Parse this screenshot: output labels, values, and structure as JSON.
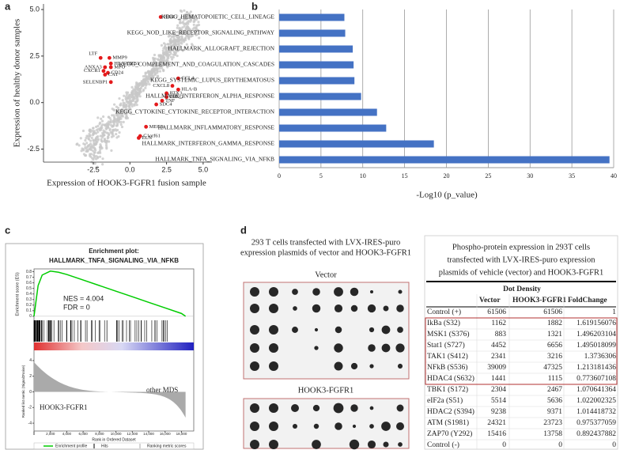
{
  "panel_labels": [
    "a",
    "b",
    "c",
    "d"
  ],
  "chart_data": [
    {
      "type": "scatter",
      "xlabel": "Expression of HOOK3-FGFR1 fusion sample",
      "ylabel": "Expression of healthy donor samples",
      "color": "#e41a1c",
      "background_color": "#c8c8c8",
      "labels": [
        "HBB",
        "LTF",
        "MMP9",
        "HLA-DRB1",
        "MPO",
        "ANXA3",
        "CXCR1",
        "CD24",
        "CA1",
        "SELENBP1",
        "CCL4",
        "CXCL8",
        "HLA-B",
        "PTX3",
        "EREG",
        "TNF",
        "SDC4",
        "MEG3",
        "C1orf61",
        "ELN"
      ],
      "x": [
        2.1,
        -2.0,
        -1.4,
        -1.3,
        -1.3,
        -1.7,
        -1.8,
        -1.5,
        -1.7,
        -1.3,
        3.3,
        2.9,
        3.3,
        2.5,
        2.5,
        2.2,
        1.8,
        1.1,
        0.7,
        0.6
      ],
      "y": [
        4.6,
        2.4,
        2.4,
        2.1,
        1.9,
        1.9,
        1.7,
        1.6,
        1.5,
        1.1,
        1.3,
        0.9,
        0.7,
        0.5,
        0.3,
        0.1,
        -0.1,
        -1.3,
        -1.8,
        -1.9
      ],
      "xlim": [
        -5.9,
        5.6
      ],
      "ylim": [
        -3.2,
        5.3
      ],
      "xticks": [
        -2.5,
        {
          "value": 0,
          "label": "0.0"
        },
        2.5,
        {
          "value": 5,
          "label": "5.0"
        }
      ],
      "yticks": [
        -2.5,
        {
          "value": 0,
          "label": "0.0"
        },
        2.5,
        {
          "value": 5,
          "label": "5.0"
        }
      ]
    },
    {
      "type": "hbar",
      "xlabel": "-Log10 (p_value)",
      "color": "#4472c4",
      "grid": true,
      "categories": [
        "KEGG_HEMATOPOIETIC_CELL_LINEAGE",
        "KEGG_NOD_LIKE_RECEPTOR_SIGNALING_PATHWAY",
        "HALLMARK_ALLOGRAFT_REJECTION",
        "KEGG_COMPLEMENT_AND_COAGULATION_CASCADES",
        "KEGG_SYSTEMIC_LUPUS_ERYTHEMATOSUS",
        "HALLMARK_INTERFERON_ALPHA_RESPONSE",
        "KEGG_CYTOKINE_CYTOKINE_RECEPTOR_INTERACTION",
        "HALLMARK_INFLAMMATORY_RESPONSE",
        "HALLMARK_INTERFERON_GAMMA_RESPONSE",
        "HALLMARK_TNFA_SIGNALING_VIA_NFKB"
      ],
      "values": [
        7.8,
        7.9,
        8.8,
        8.9,
        9.0,
        9.8,
        11.7,
        12.8,
        18.5,
        39.5
      ],
      "xlim": [
        0,
        40
      ],
      "xticks": [
        0,
        5,
        10,
        15,
        20,
        25,
        30,
        35,
        40
      ]
    },
    {
      "type": "gsea",
      "title": "Enrichment plot:",
      "subtitle": "HALLMARK_TNFA_SIGNALING_VIA_NFKB",
      "ylabel": "Enrichment score (ES)",
      "ylabel2": "Ranked list metric (Signal2Noise)",
      "xlabel": "Rank in Ordered Dataset",
      "annotations": [
        "NES = 4.004",
        "FDR = 0"
      ],
      "group_labels": [
        "HOOK3-FGFR1",
        "other MDS"
      ],
      "series": [
        {
          "name": "Enrichment profile",
          "color": "#00cc00"
        },
        {
          "name": "Hits",
          "color": "#000000"
        },
        {
          "name": "Ranking metric scores",
          "color": "#aaaaaa"
        }
      ],
      "x": [
        0,
        500,
        1000,
        2000,
        3000,
        4000,
        5000,
        6000,
        8000,
        10000,
        12000,
        14000,
        16000,
        18000,
        18500
      ],
      "y": [
        0,
        0.55,
        0.74,
        0.81,
        0.79,
        0.75,
        0.7,
        0.65,
        0.55,
        0.45,
        0.35,
        0.25,
        0.15,
        0.05,
        0
      ],
      "xlim": [
        0,
        19500
      ],
      "ylim": [
        -0.03,
        0.85
      ],
      "ylim2": [
        -5,
        5
      ],
      "xticks": [
        0,
        {
          "value": 2000,
          "label": "2,000"
        },
        {
          "value": 4000,
          "label": "4,000"
        },
        {
          "value": 6000,
          "label": "6,000"
        },
        {
          "value": 8000,
          "label": "8,000"
        },
        {
          "value": 10000,
          "label": "10,000"
        },
        {
          "value": 12000,
          "label": "12,000"
        },
        {
          "value": 14000,
          "label": "14,000"
        },
        {
          "value": 16000,
          "label": "16,000"
        },
        {
          "value": 18000,
          "label": "18,000"
        }
      ],
      "yticks": [
        0.0,
        0.1,
        0.2,
        0.3,
        0.4,
        0.5,
        0.6,
        0.7,
        0.8
      ],
      "yticks2": [
        -4,
        -2,
        0,
        2,
        4
      ]
    }
  ],
  "blot": {
    "title": [
      "293 T cells transfected with LVX-IRES-puro",
      "expression plasmids of vector and HOOK3-FGFR1"
    ],
    "panels": [
      "Vector",
      "HOOK3-FGFR1"
    ]
  },
  "table": {
    "title": [
      "Phospho-protein expression in 293T cells",
      "transfected with LVX-IRES-puro expression",
      "plasmids of vehicle (vector) and HOOK3-FGFR1"
    ],
    "group_header": "Dot Density",
    "columns": [
      "Vector",
      "HOOK3-FGFR1",
      "FoldChange"
    ],
    "rows": [
      [
        "Control (+)",
        61506,
        61506,
        1
      ],
      [
        "IkBa (S32)",
        1162,
        1882,
        1.619156076
      ],
      [
        "MSK1 (S376)",
        883,
        1321,
        1.496203104
      ],
      [
        "Stat1 (S727)",
        4452,
        6656,
        1.495018099
      ],
      [
        "TAK1 (S412)",
        2341,
        3216,
        1.3736306
      ],
      [
        "NFkB (S536)",
        39009,
        47325,
        1.213181436
      ],
      [
        "HDAC4 (S632)",
        1441,
        1115,
        0.773607108
      ],
      [
        "TBK1 (S172)",
        2304,
        2467,
        1.070641364
      ],
      [
        "eIF2a (S51)",
        5514,
        5636,
        1.022002325
      ],
      [
        "HDAC2 (S394)",
        9238,
        9371,
        1.014418732
      ],
      [
        "ATM (S1981)",
        24321,
        23723,
        0.975377059
      ],
      [
        "ZAP70 (Y292)",
        15416,
        13758,
        0.892437882
      ],
      [
        "Control (-)",
        0,
        0,
        0
      ]
    ]
  }
}
